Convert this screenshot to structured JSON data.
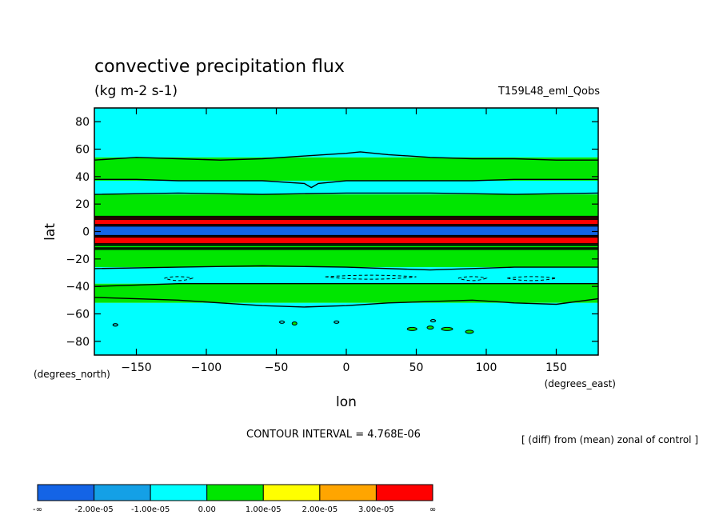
{
  "chart_data": {
    "type": "heatmap",
    "title": "convective precipitation flux",
    "subtitle": "(kg m-2 s-1)",
    "run_label": "T159L48_eml_Qobs",
    "xlabel": "lon",
    "ylabel": "lat",
    "x_units": "(degrees_east)",
    "y_units": "(degrees_north)",
    "xlim": [
      -180,
      180
    ],
    "ylim": [
      -90,
      90
    ],
    "x_ticks": [
      -150,
      -100,
      -50,
      0,
      50,
      100,
      150
    ],
    "y_ticks": [
      80,
      60,
      40,
      20,
      0,
      -20,
      -40,
      -60,
      -80
    ],
    "contour_interval_text": "CONTOUR INTERVAL = 4.768E-06",
    "note": "[ (diff) from (mean) zonal of control ]",
    "colorbar": {
      "colors": [
        "#1464e6",
        "#14a0e6",
        "#00ffff",
        "#00e600",
        "#ffff00",
        "#ffa500",
        "#ff0000"
      ],
      "labels": [
        "-∞",
        "-2.00e-05",
        "-1.00e-05",
        "0.00",
        "1.00e-05",
        "2.00e-05",
        "3.00e-05",
        "∞"
      ]
    },
    "bands": [
      {
        "lat_from": 90,
        "lat_to": 54,
        "level": 2
      },
      {
        "lat_from": 54,
        "lat_to": 37,
        "level": 3
      },
      {
        "lat_from": 37,
        "lat_to": 27,
        "level": 2
      },
      {
        "lat_from": 27,
        "lat_to": 11,
        "level": 3
      },
      {
        "lat_from": 11,
        "lat_to": 4,
        "level": 6
      },
      {
        "lat_from": 4,
        "lat_to": -3,
        "level": 0
      },
      {
        "lat_from": -3,
        "lat_to": -9,
        "level": 6
      },
      {
        "lat_from": -9,
        "lat_to": -13,
        "level": 3
      },
      {
        "lat_from": -13,
        "lat_to": -26,
        "level": 3
      },
      {
        "lat_from": -26,
        "lat_to": -38,
        "level": 2
      },
      {
        "lat_from": -38,
        "lat_to": -52,
        "level": 3
      },
      {
        "lat_from": -52,
        "lat_to": -90,
        "level": 2
      }
    ],
    "contours": [
      {
        "lat": 53,
        "lon": [
          -180,
          -150,
          -120,
          -90,
          -60,
          -30,
          0,
          10,
          30,
          60,
          90,
          120,
          150,
          180
        ],
        "lat_series": [
          52,
          54,
          53,
          52,
          53,
          55,
          57,
          58,
          56,
          54,
          53,
          53,
          52,
          52
        ]
      },
      {
        "lat": 37,
        "lon": [
          -180,
          -150,
          -120,
          -90,
          -60,
          -30,
          -25,
          -20,
          0,
          30,
          60,
          90,
          120,
          150,
          180
        ],
        "lat_series": [
          38,
          38,
          37,
          37,
          37,
          35,
          32,
          35,
          37,
          37,
          37,
          37,
          38,
          38,
          38
        ]
      },
      {
        "lat": 27,
        "lon": [
          -180,
          -120,
          -60,
          0,
          60,
          120,
          180
        ],
        "lat_series": [
          27,
          28,
          27,
          28,
          28,
          27,
          28
        ]
      },
      {
        "lat": 11,
        "lon": [
          -180,
          -90,
          0,
          90,
          180
        ],
        "lat_series": [
          11,
          11,
          11,
          11,
          11
        ]
      },
      {
        "lat": -13,
        "lon": [
          -180,
          -90,
          0,
          90,
          180
        ],
        "lat_series": [
          -13,
          -13,
          -13,
          -13,
          -13
        ]
      },
      {
        "lat": -26,
        "lon": [
          -180,
          -120,
          -60,
          0,
          60,
          120,
          180
        ],
        "lat_series": [
          -27,
          -26,
          -25,
          -26,
          -28,
          -26,
          -26
        ]
      },
      {
        "lat": -38,
        "lon": [
          -180,
          -120,
          -60,
          0,
          60,
          120,
          180
        ],
        "lat_series": [
          -40,
          -38,
          -38,
          -38,
          -38,
          -38,
          -38
        ]
      },
      {
        "lat": -52,
        "lon": [
          -180,
          -150,
          -120,
          -90,
          -60,
          -30,
          0,
          30,
          60,
          90,
          120,
          150,
          180
        ],
        "lat_series": [
          -48,
          -49,
          -50,
          -52,
          -54,
          -55,
          -54,
          -52,
          -51,
          -50,
          -52,
          -53,
          -49
        ]
      }
    ],
    "dashed_contours": [
      {
        "lon": [
          -130,
          -110
        ],
        "lat": -34
      },
      {
        "lon": [
          -15,
          50
        ],
        "lat": -33
      },
      {
        "lon": [
          80,
          100
        ],
        "lat": -34
      },
      {
        "lon": [
          115,
          150
        ],
        "lat": -34
      }
    ],
    "islands": [
      {
        "lon": -37,
        "lat": -67,
        "rx": 3,
        "ry": 2
      },
      {
        "lon": 47,
        "lat": -71,
        "rx": 6,
        "ry": 2
      },
      {
        "lon": 60,
        "lat": -70,
        "rx": 4,
        "ry": 2
      },
      {
        "lon": 72,
        "lat": -71,
        "rx": 7,
        "ry": 2
      },
      {
        "lon": 88,
        "lat": -73,
        "rx": 5,
        "ry": 2
      }
    ],
    "small_contours": [
      {
        "lon": -165,
        "lat": -68
      },
      {
        "lon": -46,
        "lat": -66
      },
      {
        "lon": -7,
        "lat": -66
      },
      {
        "lon": 62,
        "lat": -65
      }
    ]
  }
}
